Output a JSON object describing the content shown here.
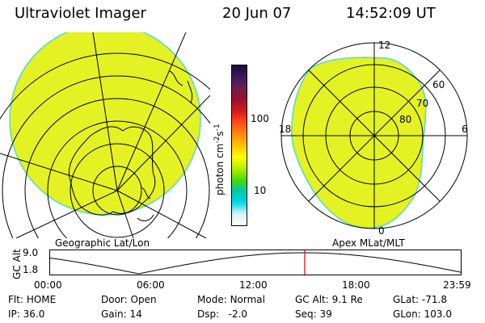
{
  "header": {
    "instrument": "Ultraviolet Imager",
    "date": "20 Jun 07",
    "time": "14:52:09 UT"
  },
  "colorbar": {
    "unit": "photon cm",
    "unit_exp1": "-2",
    "unit_s": "s",
    "unit_exp2": "-1",
    "tick_high": "100",
    "tick_low": "10",
    "colors": [
      "#1b0a3c",
      "#3a1b5c",
      "#6e1f4a",
      "#9c1030",
      "#d41a1a",
      "#ff4a18",
      "#ff8a10",
      "#ffc200",
      "#ffff00",
      "#b8f000",
      "#4bdc00",
      "#00c8a8",
      "#00d8e8",
      "#d8f0f8",
      "#ffffff"
    ]
  },
  "left_map": {
    "caption": "Geographic Lat/Lon",
    "fill_color": "#e4f223"
  },
  "right_map": {
    "caption": "Apex MLat/MLT",
    "fill_color": "#e4f223",
    "mlt_top": "12",
    "mlt_left": "18",
    "mlt_right": "6",
    "mlt_bottom": "0",
    "lat_60": "60",
    "lat_70": "70",
    "lat_80": "80"
  },
  "timeline": {
    "ylabel": "GC Alt",
    "ytick_high": "9.0",
    "ytick_low": "1.8",
    "xticks": [
      "00:00",
      "06:00",
      "12:00",
      "18:00",
      "23:59"
    ],
    "current_time_hours": 14.87,
    "marker_color": "#dd0000"
  },
  "status": {
    "flt_label": "Flt:",
    "flt_value": "HOME",
    "door_label": "Door:",
    "door_value": "Open",
    "mode_label": "Mode:",
    "mode_value": "Normal",
    "gcalt_label": "GC Alt:",
    "gcalt_value": "9.1 Re",
    "glat_label": "GLat:",
    "glat_value": "-71.8",
    "ip_label": "IP:",
    "ip_value": "36.0",
    "gain_label": "Gain:",
    "gain_value": "14",
    "dsp_label": "Dsp:",
    "dsp_value": "-2.0",
    "seq_label": "Seq:",
    "seq_value": "39",
    "glon_label": "GLon:",
    "glon_value": "103.0"
  }
}
